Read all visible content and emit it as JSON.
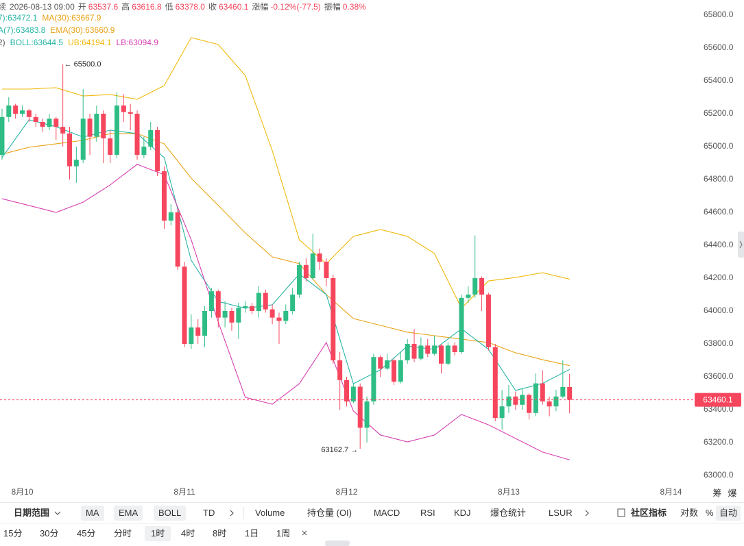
{
  "header": {
    "time_label": "续",
    "time": "2026-08-13 09:00",
    "fields": [
      {
        "label": "开",
        "value": "63537.6"
      },
      {
        "label": "高",
        "value": "63616.8"
      },
      {
        "label": "低",
        "value": "63378.0"
      },
      {
        "label": "收",
        "value": "63460.1"
      },
      {
        "label": "涨幅",
        "value": "-0.12%(-77.5)"
      },
      {
        "label": "振幅",
        "value": "0.38%"
      }
    ],
    "indicator_rows": [
      [
        {
          "label": "7)",
          "value": "63472.1",
          "color": "#26b5a5"
        },
        {
          "label": "MA(30)",
          "value": "63667.9",
          "color": "#e8a317"
        }
      ],
      [
        {
          "label": "A(7)",
          "value": "63483.8",
          "color": "#26b5a5"
        },
        {
          "label": "EMA(30)",
          "value": "63660.9",
          "color": "#e8a317"
        }
      ],
      [
        {
          "label": "2)",
          "value": null,
          "color": "#555"
        },
        {
          "label": "BOLL",
          "value": "63644.5",
          "color": "#26b5a5"
        },
        {
          "label": "UB",
          "value": "64194.1",
          "color": "#f0b90b"
        },
        {
          "label": "LB",
          "value": "63094.9",
          "color": "#d63fb2"
        }
      ]
    ]
  },
  "chart_data": {
    "type": "candlestick",
    "x": [
      0,
      1,
      2,
      3,
      4,
      5,
      6,
      7,
      8,
      9,
      10,
      11,
      12,
      13,
      14,
      15,
      16,
      17,
      18,
      19,
      20,
      21,
      22,
      23,
      24,
      25,
      26,
      27,
      28,
      29,
      30,
      31,
      32,
      33,
      34,
      35,
      36,
      37,
      38,
      39,
      40,
      41,
      42,
      43,
      44,
      45,
      46,
      47,
      48,
      49,
      50,
      51,
      52,
      53,
      54,
      55,
      56,
      57,
      58,
      59,
      60,
      61,
      62,
      63,
      64,
      65,
      66,
      67,
      68,
      69,
      70,
      71,
      72,
      73,
      74,
      75,
      76,
      77,
      78,
      79,
      80,
      81,
      82,
      83,
      84
    ],
    "open": [
      64950,
      65180,
      65250,
      65200,
      65220,
      65180,
      65150,
      65120,
      65170,
      65120,
      65080,
      64880,
      64920,
      65170,
      65060,
      65200,
      65050,
      64950,
      65250,
      65210,
      65200,
      64950,
      65000,
      65100,
      64850,
      64550,
      64600,
      64270,
      63800,
      63900,
      63850,
      64000,
      64120,
      63960,
      64000,
      63930,
      64020,
      64030,
      64000,
      64110,
      64010,
      63960,
      63940,
      64000,
      64100,
      64280,
      64200,
      64350,
      64300,
      64200,
      63700,
      63580,
      63450,
      63540,
      63290,
      63450,
      63720,
      63650,
      63700,
      63570,
      63700,
      63800,
      63710,
      63790,
      63740,
      63790,
      63680,
      63790,
      63750,
      64080,
      64100,
      64200,
      64100,
      63780,
      63350,
      63420,
      63480,
      63430,
      63490,
      63380,
      63560,
      63450,
      63420,
      63480,
      63537.6
    ],
    "high": [
      65230,
      65300,
      65260,
      65250,
      65230,
      65200,
      65170,
      65200,
      65180,
      65500,
      65120,
      65000,
      65350,
      65200,
      65250,
      65220,
      65100,
      65330,
      65320,
      65260,
      65220,
      65060,
      65150,
      65120,
      64880,
      64650,
      64620,
      64300,
      63980,
      63950,
      64030,
      64140,
      64130,
      64060,
      64020,
      64050,
      64060,
      64050,
      64150,
      64130,
      64040,
      63990,
      64040,
      64140,
      64300,
      64320,
      64470,
      64380,
      64320,
      64220,
      63750,
      63600,
      63560,
      63560,
      63480,
      63740,
      63730,
      63740,
      63710,
      63750,
      63830,
      63890,
      63840,
      63830,
      63850,
      63800,
      63810,
      63810,
      64100,
      64150,
      64460,
      64210,
      64110,
      63800,
      63520,
      63550,
      63510,
      63530,
      63500,
      63620,
      63640,
      63480,
      63520,
      63700,
      63616.8
    ],
    "low": [
      64920,
      65150,
      65170,
      65180,
      65150,
      65120,
      65090,
      65100,
      65040,
      65000,
      64800,
      64780,
      64900,
      64950,
      65030,
      64900,
      64900,
      64930,
      65150,
      65100,
      64920,
      64930,
      64980,
      64820,
      64500,
      64520,
      64250,
      63780,
      63770,
      63800,
      63780,
      63960,
      63900,
      63900,
      63880,
      63830,
      63990,
      63980,
      63960,
      63990,
      63920,
      63800,
      63920,
      63980,
      64080,
      64180,
      64190,
      64250,
      64150,
      63680,
      63400,
      63420,
      63440,
      63162.7,
      63200,
      63430,
      63600,
      63640,
      63550,
      63560,
      63680,
      63690,
      63700,
      63720,
      63730,
      63620,
      63670,
      63730,
      63740,
      64050,
      64080,
      64000,
      63760,
      63330,
      63280,
      63380,
      63400,
      63400,
      63340,
      63360,
      63430,
      63360,
      63390,
      63470,
      63378
    ],
    "close": [
      65180,
      65250,
      65200,
      65220,
      65180,
      65150,
      65120,
      65170,
      65120,
      65080,
      64880,
      64920,
      65170,
      65060,
      65200,
      65050,
      64950,
      65250,
      65210,
      65200,
      64950,
      65000,
      65100,
      64850,
      64550,
      64600,
      64270,
      63800,
      63900,
      63850,
      64000,
      64120,
      63960,
      64000,
      63930,
      64020,
      64030,
      64000,
      64110,
      64010,
      63960,
      63940,
      64000,
      64100,
      64280,
      64200,
      64350,
      64300,
      64200,
      63700,
      63580,
      63450,
      63540,
      63290,
      63450,
      63720,
      63650,
      63700,
      63570,
      63700,
      63800,
      63710,
      63790,
      63740,
      63790,
      63680,
      63790,
      63750,
      64080,
      64100,
      64200,
      64100,
      63780,
      63350,
      63420,
      63480,
      63430,
      63490,
      63380,
      63560,
      63450,
      63420,
      63480,
      63537.6,
      63460.1
    ],
    "up_color": "#2ebd85",
    "down_color": "#f6465d",
    "series": [
      {
        "name": "UB",
        "color": "#f0b90b",
        "x": [
          0,
          4,
          8,
          12,
          16,
          20,
          24,
          28,
          32,
          36,
          40,
          44,
          48,
          52,
          56,
          60,
          64,
          68,
          72,
          76,
          80,
          84
        ],
        "values": [
          65350,
          65350,
          65358,
          65308,
          65317,
          65288,
          65371,
          65663,
          65621,
          65433,
          64975,
          64433,
          64288,
          64454,
          64496,
          64454,
          64350,
          64017,
          64183,
          64204,
          64233,
          64194.1
        ]
      },
      {
        "name": "MA(30)",
        "color": "#e8a317",
        "x": [
          0,
          4,
          8,
          12,
          16,
          20,
          24,
          28,
          32,
          36,
          40,
          44,
          48,
          52,
          56,
          60,
          64,
          68,
          72,
          76,
          80,
          84
        ],
        "values": [
          64954,
          64996,
          65017,
          65038,
          65079,
          65079,
          65017,
          64808,
          64642,
          64475,
          64329,
          64288,
          64100,
          63954,
          63913,
          63871,
          63850,
          63829,
          63808,
          63746,
          63704,
          63667.9
        ]
      },
      {
        "name": "BOLL",
        "color": "#26b5a5",
        "x": [
          0,
          4,
          8,
          12,
          16,
          20,
          24,
          28,
          32,
          36,
          40,
          44,
          48,
          52,
          56,
          60,
          64,
          68,
          72,
          76,
          80,
          84
        ],
        "values": [
          64933,
          65163,
          65121,
          65058,
          65100,
          65079,
          64933,
          64308,
          64058,
          64017,
          64038,
          64225,
          64100,
          63558,
          63642,
          63787,
          63767,
          63892,
          63767,
          63517,
          63560,
          63644.5
        ]
      },
      {
        "name": "LB",
        "color": "#d63fb2",
        "x": [
          0,
          4,
          8,
          12,
          16,
          20,
          24,
          28,
          32,
          36,
          40,
          44,
          48,
          52,
          56,
          60,
          64,
          68,
          72,
          76,
          80,
          84
        ],
        "values": [
          64683,
          64642,
          64600,
          64662,
          64767,
          64892,
          64829,
          64433,
          63933,
          63475,
          63433,
          63558,
          63808,
          63392,
          63246,
          63204,
          63246,
          63371,
          63308,
          63225,
          63142,
          63094.9
        ]
      }
    ],
    "ylim": [
      63000,
      65800
    ],
    "yticks": [
      {
        "value": 63000,
        "label": "63000.0"
      },
      {
        "value": 63200,
        "label": "63200.0"
      },
      {
        "value": 63400,
        "label": "63400.0"
      },
      {
        "value": 63600,
        "label": "63600.0"
      },
      {
        "value": 63800,
        "label": "63800.0"
      },
      {
        "value": 64000,
        "label": "64000.0"
      },
      {
        "value": 64200,
        "label": "64200.0"
      },
      {
        "value": 64400,
        "label": "64400.0"
      },
      {
        "value": 64600,
        "label": "64600.0"
      },
      {
        "value": 64800,
        "label": "64800.0"
      },
      {
        "value": 65000,
        "label": "65000.0"
      },
      {
        "value": 65200,
        "label": "65200.0"
      },
      {
        "value": 65400,
        "label": "65400.0"
      },
      {
        "value": 65600,
        "label": "65600.0"
      },
      {
        "value": 65800,
        "label": "65800.0"
      }
    ],
    "xlim": [
      -0.3,
      102.2
    ],
    "xticks": [
      {
        "value": 3,
        "label": "8月10"
      },
      {
        "value": 27,
        "label": "8月11"
      },
      {
        "value": 51,
        "label": "8月12"
      },
      {
        "value": 75,
        "label": "8月13"
      },
      {
        "value": 99,
        "label": "8月14"
      }
    ],
    "grid": false,
    "last_price": 63460.1,
    "annotations": [
      {
        "text": "← 65500.0",
        "x": 9,
        "y": 65500,
        "side": "right"
      },
      {
        "text": "63162.7 →",
        "x": 53,
        "y": 63162.7,
        "side": "left"
      }
    ]
  },
  "side_tabs": [
    "筹",
    "爆"
  ],
  "toolbar": {
    "date_range": "日期范围",
    "overlays": [
      "MA",
      "EMA",
      "BOLL",
      "TD"
    ],
    "indicators": [
      "Volume",
      "持仓量 (OI)",
      "MACD",
      "RSI",
      "KDJ",
      "爆仓统计",
      "LSUR"
    ],
    "community": "社区指标",
    "scale": [
      "对数",
      "%",
      "自动"
    ]
  },
  "timeframes": [
    "15分",
    "30分",
    "45分",
    "分时",
    "1时",
    "4时",
    "8时",
    "1日",
    "1周"
  ]
}
